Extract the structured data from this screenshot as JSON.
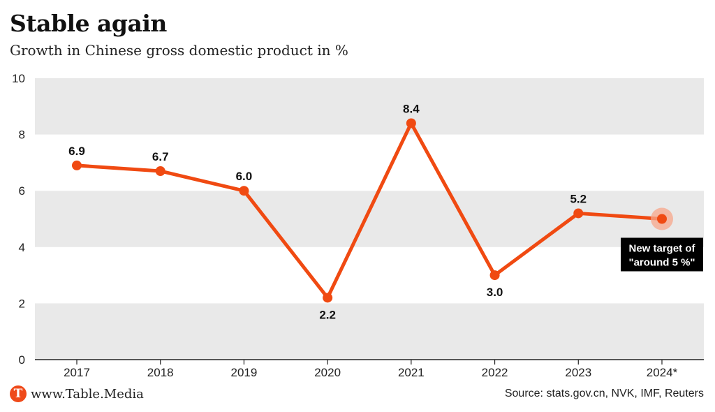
{
  "header": {
    "title": "Stable again",
    "subtitle": "Growth in Chinese gross domestic product in %"
  },
  "footer": {
    "brand": "www.Table.Media",
    "brand_logo_letter": "T",
    "source": "Source: stats.gov.cn, NVK, IMF, Reuters"
  },
  "chart_data": {
    "type": "line",
    "categories": [
      "2017",
      "2018",
      "2019",
      "2020",
      "2021",
      "2022",
      "2023",
      "2024*"
    ],
    "values": [
      6.9,
      6.7,
      6.0,
      2.2,
      8.4,
      3.0,
      5.2,
      5.0
    ],
    "data_labels": [
      "6.9",
      "6.7",
      "6.0",
      "2.2",
      "8.4",
      "3.0",
      "5.2",
      ""
    ],
    "y_ticks": [
      "0",
      "2",
      "4",
      "6",
      "8",
      "10"
    ],
    "ylim": [
      0,
      10
    ],
    "grid": "alternating horizontal bands",
    "annotation": {
      "category": "2024*",
      "value": 5.0,
      "lines": [
        "New target of",
        "\"around 5 %\""
      ]
    },
    "colors": {
      "line": "#f04a12",
      "band": "#e9e9e9",
      "annotation_bg": "#000000",
      "highlight": "#f7a589"
    }
  }
}
